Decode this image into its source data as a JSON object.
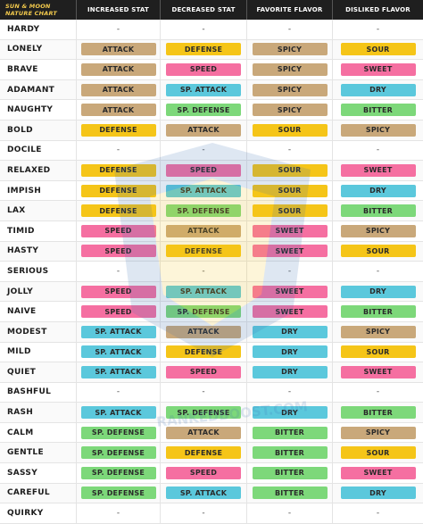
{
  "headers": [
    "SUN & MOON NATURE CHART",
    "INCREASED STAT",
    "DECREASED STAT",
    "FAVORITE FLAVOR",
    "DISLIKED FLAVOR"
  ],
  "watermark_text": "RANKEDBOOST.COM",
  "colors": {
    "ATTACK": "#c9a87a",
    "DEFENSE": "#f5c518",
    "SPEED": "#f56fa1",
    "SP. ATTACK": "#5bc8dc",
    "SP. DEFENSE": "#7dd87a",
    "SPICY": "#c9a87a",
    "SOUR": "#f5c518",
    "SWEET": "#f56fa1",
    "DRY": "#5bc8dc",
    "BITTER": "#7dd87a"
  },
  "rows": [
    {
      "nature": "HARDY",
      "inc": "-",
      "dec": "-",
      "fav": "-",
      "dis": "-"
    },
    {
      "nature": "LONELY",
      "inc": "ATTACK",
      "dec": "DEFENSE",
      "fav": "SPICY",
      "dis": "SOUR"
    },
    {
      "nature": "BRAVE",
      "inc": "ATTACK",
      "dec": "SPEED",
      "fav": "SPICY",
      "dis": "SWEET"
    },
    {
      "nature": "ADAMANT",
      "inc": "ATTACK",
      "dec": "SP. ATTACK",
      "fav": "SPICY",
      "dis": "DRY"
    },
    {
      "nature": "NAUGHTY",
      "inc": "ATTACK",
      "dec": "SP. DEFENSE",
      "fav": "SPICY",
      "dis": "BITTER"
    },
    {
      "nature": "BOLD",
      "inc": "DEFENSE",
      "dec": "ATTACK",
      "fav": "SOUR",
      "dis": "SPICY"
    },
    {
      "nature": "DOCILE",
      "inc": "-",
      "dec": "-",
      "fav": "-",
      "dis": "-"
    },
    {
      "nature": "RELAXED",
      "inc": "DEFENSE",
      "dec": "SPEED",
      "fav": "SOUR",
      "dis": "SWEET"
    },
    {
      "nature": "IMPISH",
      "inc": "DEFENSE",
      "dec": "SP. ATTACK",
      "fav": "SOUR",
      "dis": "DRY"
    },
    {
      "nature": "LAX",
      "inc": "DEFENSE",
      "dec": "SP. DEFENSE",
      "fav": "SOUR",
      "dis": "BITTER"
    },
    {
      "nature": "TIMID",
      "inc": "SPEED",
      "dec": "ATTACK",
      "fav": "SWEET",
      "dis": "SPICY"
    },
    {
      "nature": "HASTY",
      "inc": "SPEED",
      "dec": "DEFENSE",
      "fav": "SWEET",
      "dis": "SOUR"
    },
    {
      "nature": "SERIOUS",
      "inc": "-",
      "dec": "-",
      "fav": "-",
      "dis": "-"
    },
    {
      "nature": "JOLLY",
      "inc": "SPEED",
      "dec": "SP. ATTACK",
      "fav": "SWEET",
      "dis": "DRY"
    },
    {
      "nature": "NAIVE",
      "inc": "SPEED",
      "dec": "SP. DEFENSE",
      "fav": "SWEET",
      "dis": "BITTER"
    },
    {
      "nature": "MODEST",
      "inc": "SP. ATTACK",
      "dec": "ATTACK",
      "fav": "DRY",
      "dis": "SPICY"
    },
    {
      "nature": "MILD",
      "inc": "SP. ATTACK",
      "dec": "DEFENSE",
      "fav": "DRY",
      "dis": "SOUR"
    },
    {
      "nature": "QUIET",
      "inc": "SP. ATTACK",
      "dec": "SPEED",
      "fav": "DRY",
      "dis": "SWEET"
    },
    {
      "nature": "BASHFUL",
      "inc": "-",
      "dec": "-",
      "fav": "-",
      "dis": "-"
    },
    {
      "nature": "RASH",
      "inc": "SP. ATTACK",
      "dec": "SP. DEFENSE",
      "fav": "DRY",
      "dis": "BITTER"
    },
    {
      "nature": "CALM",
      "inc": "SP. DEFENSE",
      "dec": "ATTACK",
      "fav": "BITTER",
      "dis": "SPICY"
    },
    {
      "nature": "GENTLE",
      "inc": "SP. DEFENSE",
      "dec": "DEFENSE",
      "fav": "BITTER",
      "dis": "SOUR"
    },
    {
      "nature": "SASSY",
      "inc": "SP. DEFENSE",
      "dec": "SPEED",
      "fav": "BITTER",
      "dis": "SWEET"
    },
    {
      "nature": "CAREFUL",
      "inc": "SP. DEFENSE",
      "dec": "SP. ATTACK",
      "fav": "BITTER",
      "dis": "DRY"
    },
    {
      "nature": "QUIRKY",
      "inc": "-",
      "dec": "-",
      "fav": "-",
      "dis": "-"
    }
  ]
}
